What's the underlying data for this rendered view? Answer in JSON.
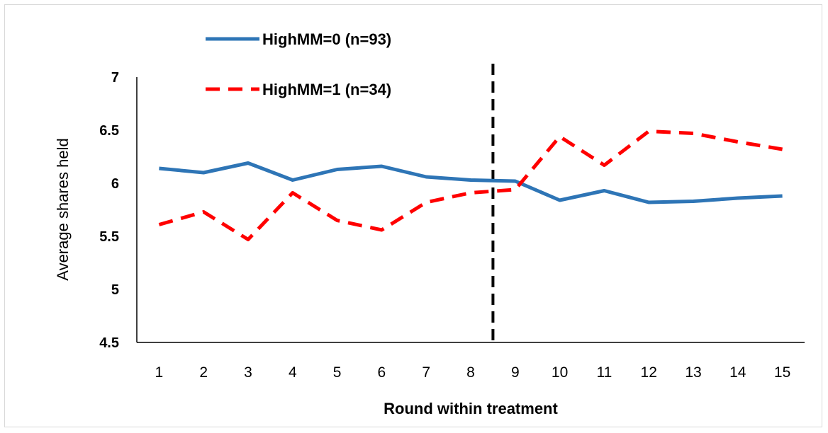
{
  "chart_data": {
    "type": "line",
    "title": "",
    "xlabel": "Round within treatment",
    "ylabel": "Average shares held",
    "categories": [
      "1",
      "2",
      "3",
      "4",
      "5",
      "6",
      "7",
      "8",
      "9",
      "10",
      "11",
      "12",
      "13",
      "14",
      "15"
    ],
    "ylim": [
      4.5,
      7
    ],
    "yticks": [
      "4.5",
      "5",
      "5.5",
      "6",
      "6.5",
      "7"
    ],
    "grid": false,
    "legend_position": "top-left",
    "series": [
      {
        "name": "HighMM=0 (n=93)",
        "color": "#2e75b6",
        "style": "solid",
        "values": [
          6.14,
          6.1,
          6.19,
          6.03,
          6.13,
          6.16,
          6.06,
          6.03,
          6.02,
          5.84,
          5.93,
          5.82,
          5.83,
          5.86,
          5.88
        ]
      },
      {
        "name": "HighMM=1 (n=34)",
        "color": "#ff0000",
        "style": "dashed",
        "values": [
          5.61,
          5.73,
          5.47,
          5.91,
          5.65,
          5.56,
          5.82,
          5.91,
          5.94,
          6.44,
          6.17,
          6.49,
          6.47,
          6.39,
          6.32
        ]
      }
    ],
    "annotations": [
      {
        "type": "vertical-dashed-line",
        "between_categories": [
          "8",
          "9"
        ],
        "color": "#000000"
      }
    ]
  }
}
